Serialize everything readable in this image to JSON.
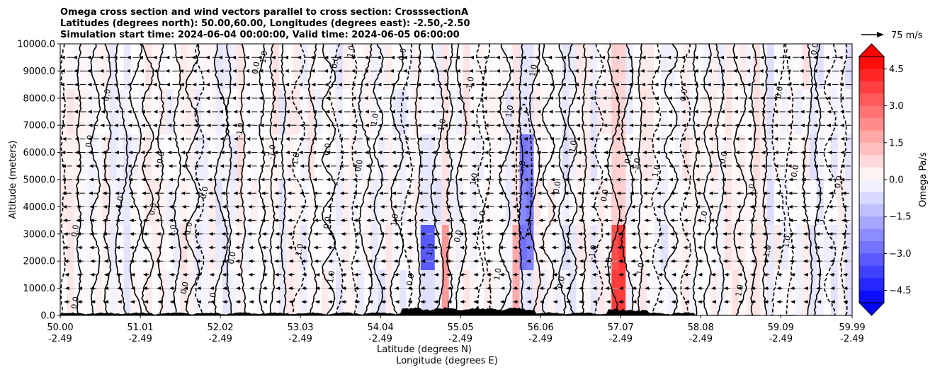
{
  "chart_data": {
    "type": "contour",
    "title_lines": [
      "Omega cross section and wind vectors parallel to cross section: CrosssectionA",
      "Latitudes (degrees north): 50.00,60.00, Longitudes (degrees east): -2.50,-2.50",
      "Simulation start time: 2024-06-04 00:00:00, Valid time: 2024-06-05 06:00:00"
    ],
    "ylabel": "Altitude (meters)",
    "xlabel_line1": "Latitude (degrees N)",
    "xlabel_line2": "Longitude (degrees E)",
    "ylim": [
      0,
      10000
    ],
    "yticks": [
      "0.0",
      "1000.0",
      "2000.0",
      "3000.0",
      "4000.0",
      "5000.0",
      "6000.0",
      "7000.0",
      "8000.0",
      "9000.0",
      "10000.0"
    ],
    "xlim": [
      50.0,
      59.99
    ],
    "xticks": [
      {
        "lat": "50.00",
        "lon": "-2.49"
      },
      {
        "lat": "51.01",
        "lon": "-2.49"
      },
      {
        "lat": "52.02",
        "lon": "-2.49"
      },
      {
        "lat": "53.03",
        "lon": "-2.49"
      },
      {
        "lat": "54.04",
        "lon": "-2.49"
      },
      {
        "lat": "55.05",
        "lon": "-2.49"
      },
      {
        "lat": "56.06",
        "lon": "-2.49"
      },
      {
        "lat": "57.07",
        "lon": "-2.49"
      },
      {
        "lat": "58.08",
        "lon": "-2.49"
      },
      {
        "lat": "59.09",
        "lon": "-2.49"
      },
      {
        "lat": "59.99",
        "lon": "-2.49"
      }
    ],
    "colorbar": {
      "label": "Omega Pa/s",
      "min": -5.0,
      "max": 5.0,
      "ticks": [
        "4.5",
        "3.0",
        "1.5",
        "0.0",
        "−1.5",
        "−3.0",
        "−4.5"
      ],
      "low_color": "#0000ff",
      "mid_color": "#ffffff",
      "high_color": "#ff0000"
    },
    "quiver_key": "75 m/s",
    "contour_levels": [
      "-1.0",
      "0.0",
      "1.0"
    ],
    "contour_labels": [
      {
        "t": "0.0",
        "lat": 50.22,
        "alt": 450
      },
      {
        "t": "0.0",
        "lat": 50.22,
        "alt": 3100
      },
      {
        "t": "0.0",
        "lat": 50.4,
        "alt": 6400
      },
      {
        "t": "0.0",
        "lat": 50.62,
        "alt": 8100
      },
      {
        "t": "-1.0",
        "lat": 50.78,
        "alt": 4100
      },
      {
        "t": "0.0",
        "lat": 51.2,
        "alt": 3900
      },
      {
        "t": "0.0",
        "lat": 51.3,
        "alt": 5800
      },
      {
        "t": "1.0",
        "lat": 51.65,
        "alt": 3200
      },
      {
        "t": "1.0",
        "lat": 51.45,
        "alt": 3100
      },
      {
        "t": "0.0",
        "lat": 51.6,
        "alt": 1000
      },
      {
        "t": "0.0",
        "lat": 51.85,
        "alt": 4500
      },
      {
        "t": "0.0",
        "lat": 52.2,
        "alt": 2100
      },
      {
        "t": "1.0",
        "lat": 51.95,
        "alt": 600
      },
      {
        "t": "-1.0",
        "lat": 52.3,
        "alt": 6800
      },
      {
        "t": "0.0",
        "lat": 52.5,
        "alt": 9100
      },
      {
        "t": "1.0",
        "lat": 52.6,
        "alt": 9500
      },
      {
        "t": "-1.0",
        "lat": 52.7,
        "alt": 6000
      },
      {
        "t": "-1.0",
        "lat": 53.0,
        "alt": 5700
      },
      {
        "t": "1.0",
        "lat": 53.45,
        "alt": 1400
      },
      {
        "t": "1.0",
        "lat": 53.05,
        "alt": 2400
      },
      {
        "t": "0.0",
        "lat": 53.4,
        "alt": 6100
      },
      {
        "t": "0.0",
        "lat": 53.4,
        "alt": 3400
      },
      {
        "t": "0.0",
        "lat": 53.5,
        "alt": 9300
      },
      {
        "t": "1.0",
        "lat": 53.7,
        "alt": 9700
      },
      {
        "t": "0.0",
        "lat": 53.8,
        "alt": 5500
      },
      {
        "t": "1.0",
        "lat": 54.0,
        "alt": 7200
      },
      {
        "t": "0.0",
        "lat": 54.35,
        "alt": 9600
      },
      {
        "t": "1.0",
        "lat": 54.25,
        "alt": 3500
      },
      {
        "t": "1.0",
        "lat": 54.7,
        "alt": 2400
      },
      {
        "t": "0.0",
        "lat": 54.45,
        "alt": 1300
      },
      {
        "t": "1.0",
        "lat": 54.85,
        "alt": 7000
      },
      {
        "t": "1.0",
        "lat": 55.25,
        "alt": 5000
      },
      {
        "t": "-1.0",
        "lat": 55.2,
        "alt": 8500
      },
      {
        "t": "0.0",
        "lat": 55.05,
        "alt": 2900
      },
      {
        "t": "1.0",
        "lat": 55.35,
        "alt": 3600
      },
      {
        "t": "1.0",
        "lat": 55.55,
        "alt": 1500
      },
      {
        "t": "-1.0",
        "lat": 55.85,
        "alt": 5400
      },
      {
        "t": "1.0",
        "lat": 55.7,
        "alt": 7500
      },
      {
        "t": "1.0",
        "lat": 56.0,
        "alt": 9000
      },
      {
        "t": "0.0",
        "lat": 56.3,
        "alt": 4700
      },
      {
        "t": "0.0",
        "lat": 56.35,
        "alt": 1200
      },
      {
        "t": "1.0",
        "lat": 56.5,
        "alt": 6200
      },
      {
        "t": "-1.0",
        "lat": 56.75,
        "alt": 2300
      },
      {
        "t": "0.0",
        "lat": 56.9,
        "alt": 4400
      },
      {
        "t": "1.0",
        "lat": 56.95,
        "alt": 1900
      },
      {
        "t": "0.0",
        "lat": 57.2,
        "alt": 5800
      },
      {
        "t": "-1.0",
        "lat": 57.3,
        "alt": 5500
      },
      {
        "t": "1.0",
        "lat": 57.35,
        "alt": 1700
      },
      {
        "t": "1.0",
        "lat": 57.55,
        "alt": 5300
      },
      {
        "t": "0.0",
        "lat": 57.9,
        "alt": 8100
      },
      {
        "t": "1.0",
        "lat": 58.15,
        "alt": 3600
      },
      {
        "t": "0.0",
        "lat": 58.4,
        "alt": 5800
      },
      {
        "t": "1.0",
        "lat": 58.75,
        "alt": 4600
      },
      {
        "t": "1.0",
        "lat": 58.6,
        "alt": 900
      },
      {
        "t": "-1.0",
        "lat": 58.95,
        "alt": 2300
      },
      {
        "t": "0.0",
        "lat": 59.1,
        "alt": 8200
      },
      {
        "t": "1.0",
        "lat": 59.2,
        "alt": 2700
      },
      {
        "t": "0.0",
        "lat": 59.3,
        "alt": 5300
      },
      {
        "t": "0.0",
        "lat": 59.55,
        "alt": 9800
      },
      {
        "t": "0.0",
        "lat": 59.85,
        "alt": 4900
      }
    ]
  }
}
